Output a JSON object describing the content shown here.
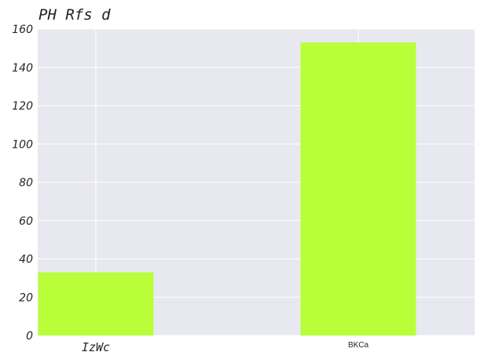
{
  "chart_data": {
    "type": "bar",
    "title": "PH Rfs d",
    "xlabel": "",
    "ylabel": "",
    "categories": [
      "IzWc",
      "BKCa"
    ],
    "values": [
      33,
      153
    ],
    "ylim": [
      0,
      160
    ],
    "yticks": [
      0,
      20,
      40,
      60,
      80,
      100,
      120,
      140,
      160
    ],
    "grid": true,
    "legend": "none",
    "colors": {
      "bar": "#b8ff3a",
      "plot_background": "#e8e8f0",
      "grid": "#ffffff"
    }
  }
}
